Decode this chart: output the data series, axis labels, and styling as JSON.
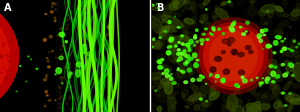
{
  "figsize": [
    3.0,
    1.12
  ],
  "dpi": 100,
  "panel_A_label": "A",
  "panel_B_label": "B",
  "label_color": "white",
  "label_fontsize": 7,
  "background_color": "black",
  "seed_A": 42,
  "seed_B": 99
}
